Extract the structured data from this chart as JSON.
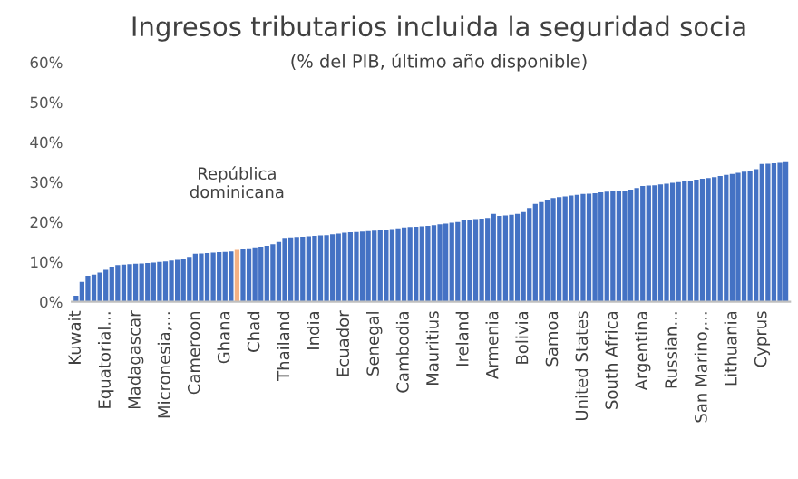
{
  "chart_data": {
    "type": "bar",
    "title": "Ingresos tributarios incluida la seguridad socia",
    "subtitle": "(% del PIB, último año disponible)",
    "categories": [
      "Kuwait",
      null,
      null,
      null,
      null,
      "Equatorial...",
      null,
      null,
      null,
      null,
      "Madagascar",
      null,
      null,
      null,
      null,
      "Micronesia,...",
      null,
      null,
      null,
      null,
      "Cameroon",
      null,
      null,
      null,
      null,
      "Ghana",
      null,
      null,
      null,
      null,
      "Chad",
      null,
      null,
      null,
      null,
      "Thailand",
      null,
      null,
      null,
      null,
      "India",
      null,
      null,
      null,
      null,
      "Ecuador",
      null,
      null,
      null,
      null,
      "Senegal",
      null,
      null,
      null,
      null,
      "Cambodia",
      null,
      null,
      null,
      null,
      "Mauritius",
      null,
      null,
      null,
      null,
      "Ireland",
      null,
      null,
      null,
      null,
      "Armenia",
      null,
      null,
      null,
      null,
      "Bolivia",
      null,
      null,
      null,
      null,
      "Samoa",
      null,
      null,
      null,
      null,
      "United States",
      null,
      null,
      null,
      null,
      "South Africa",
      null,
      null,
      null,
      null,
      "Argentina",
      null,
      null,
      null,
      null,
      "Russian...",
      null,
      null,
      null,
      null,
      "San Marino,...",
      null,
      null,
      null,
      null,
      "Lithuania",
      null,
      null,
      null,
      null,
      "Cyprus",
      null,
      null,
      null,
      null
    ],
    "values": [
      1.5,
      5,
      6.5,
      6.8,
      7.3,
      8,
      8.8,
      9.2,
      9.3,
      9.4,
      9.5,
      9.6,
      9.7,
      9.8,
      10,
      10.1,
      10.3,
      10.5,
      10.8,
      11.2,
      12,
      12.1,
      12.2,
      12.3,
      12.4,
      12.5,
      12.6,
      13,
      13.2,
      13.4,
      13.6,
      13.8,
      14,
      14.4,
      15,
      16,
      16.1,
      16.2,
      16.3,
      16.4,
      16.5,
      16.6,
      16.7,
      16.9,
      17.1,
      17.3,
      17.4,
      17.5,
      17.6,
      17.7,
      17.8,
      17.9,
      18,
      18.2,
      18.4,
      18.6,
      18.7,
      18.8,
      18.9,
      19,
      19.2,
      19.4,
      19.6,
      19.8,
      20,
      20.5,
      20.6,
      20.7,
      20.8,
      21,
      22,
      21.5,
      21.6,
      21.8,
      22,
      22.5,
      23.5,
      24.5,
      25,
      25.5,
      26,
      26.2,
      26.4,
      26.6,
      26.8,
      27,
      27.1,
      27.2,
      27.4,
      27.6,
      27.7,
      27.8,
      27.9,
      28.1,
      28.5,
      29,
      29.1,
      29.2,
      29.4,
      29.6,
      29.8,
      30,
      30.2,
      30.4,
      30.6,
      30.8,
      31,
      31.2,
      31.5,
      31.8,
      32,
      32.3,
      32.6,
      32.9,
      33.2,
      34.5,
      34.6,
      34.7,
      34.8,
      35
    ],
    "colors": [
      "#4472c4",
      "#4472c4",
      "#4472c4",
      "#4472c4",
      "#4472c4",
      "#4472c4",
      "#4472c4",
      "#4472c4",
      "#4472c4",
      "#4472c4",
      "#4472c4",
      "#4472c4",
      "#4472c4",
      "#4472c4",
      "#4472c4",
      "#4472c4",
      "#4472c4",
      "#4472c4",
      "#4472c4",
      "#4472c4",
      "#4472c4",
      "#4472c4",
      "#4472c4",
      "#4472c4",
      "#4472c4",
      "#4472c4",
      "#4472c4",
      "#f4b183",
      "#4472c4",
      "#4472c4",
      "#4472c4",
      "#4472c4",
      "#4472c4",
      "#4472c4",
      "#4472c4",
      "#4472c4",
      "#4472c4",
      "#4472c4",
      "#4472c4",
      "#4472c4",
      "#4472c4",
      "#4472c4",
      "#4472c4",
      "#4472c4",
      "#4472c4",
      "#4472c4",
      "#4472c4",
      "#4472c4",
      "#4472c4",
      "#4472c4",
      "#4472c4",
      "#4472c4",
      "#4472c4",
      "#4472c4",
      "#4472c4",
      "#4472c4",
      "#4472c4",
      "#4472c4",
      "#4472c4",
      "#4472c4",
      "#4472c4",
      "#4472c4",
      "#4472c4",
      "#4472c4",
      "#4472c4",
      "#4472c4",
      "#4472c4",
      "#4472c4",
      "#4472c4",
      "#4472c4",
      "#4472c4",
      "#4472c4",
      "#4472c4",
      "#4472c4",
      "#4472c4",
      "#4472c4",
      "#4472c4",
      "#4472c4",
      "#4472c4",
      "#4472c4",
      "#4472c4",
      "#4472c4",
      "#4472c4",
      "#4472c4",
      "#4472c4",
      "#4472c4",
      "#4472c4",
      "#4472c4",
      "#4472c4",
      "#4472c4",
      "#4472c4",
      "#4472c4",
      "#4472c4",
      "#4472c4",
      "#4472c4",
      "#4472c4",
      "#4472c4",
      "#4472c4",
      "#4472c4",
      "#4472c4",
      "#4472c4",
      "#4472c4",
      "#4472c4",
      "#4472c4",
      "#4472c4",
      "#4472c4",
      "#4472c4",
      "#4472c4",
      "#4472c4",
      "#4472c4",
      "#4472c4",
      "#4472c4",
      "#4472c4",
      "#4472c4",
      "#4472c4",
      "#4472c4",
      "#4472c4",
      "#4472c4",
      "#4472c4",
      "#4472c4"
    ],
    "ylim": [
      0,
      60
    ],
    "yticks": [
      {
        "value": 0,
        "label": "0%"
      },
      {
        "value": 10,
        "label": "10%"
      },
      {
        "value": 20,
        "label": "20%"
      },
      {
        "value": 30,
        "label": "30%"
      },
      {
        "value": 40,
        "label": "40%"
      },
      {
        "value": 50,
        "label": "50%"
      },
      {
        "value": 60,
        "label": "60%"
      }
    ],
    "annotations": [
      "República\ndominicana"
    ],
    "grid": false,
    "legend": false
  }
}
